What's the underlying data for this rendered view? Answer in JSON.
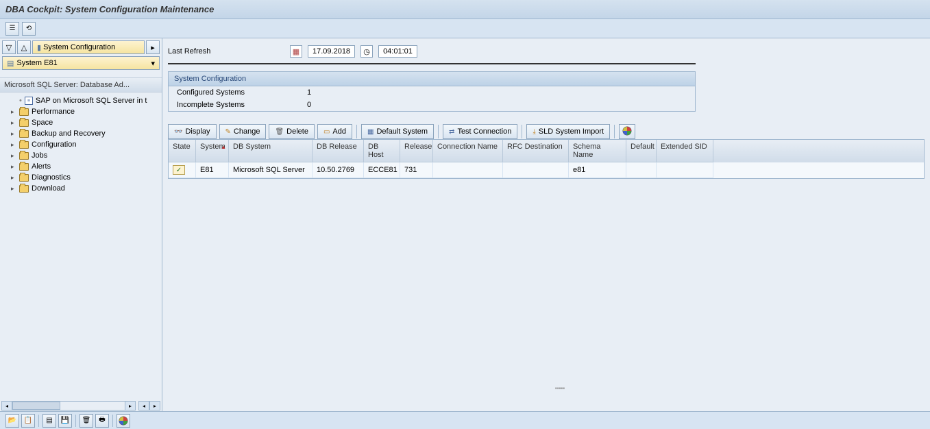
{
  "title": "DBA Cockpit: System Configuration Maintenance",
  "sidebar": {
    "sys_config_btn": "System Configuration",
    "system_label": "System E81",
    "tree_header": "Microsoft SQL Server: Database Ad...",
    "leaf": "SAP on Microsoft SQL Server in t",
    "nodes": [
      "Performance",
      "Space",
      "Backup and Recovery",
      "Configuration",
      "Jobs",
      "Alerts",
      "Diagnostics",
      "Download"
    ]
  },
  "refresh": {
    "label": "Last Refresh",
    "date": "17.09.2018",
    "time": "04:01:01"
  },
  "config": {
    "title": "System Configuration",
    "configured_label": "Configured Systems",
    "configured_value": "1",
    "incomplete_label": "Incomplete Systems",
    "incomplete_value": "0"
  },
  "actions": {
    "display": "Display",
    "change": "Change",
    "delete": "Delete",
    "add": "Add",
    "default_system": "Default System",
    "test_conn": "Test Connection",
    "sld_import": "SLD System Import"
  },
  "grid": {
    "headers": [
      "State",
      "System",
      "DB System",
      "DB Release",
      "DB Host",
      "Release",
      "Connection Name",
      "RFC Destination",
      "Schema Name",
      "Default",
      "Extended SID"
    ],
    "widths": [
      40,
      48,
      122,
      75,
      53,
      48,
      102,
      96,
      84,
      44,
      83
    ],
    "row": [
      "",
      "E81",
      "Microsoft SQL Server",
      "10.50.2769",
      "ECCE81",
      "731",
      "",
      "",
      "e81",
      "",
      ""
    ]
  },
  "colors": {
    "accent": "#c3d5e8"
  }
}
